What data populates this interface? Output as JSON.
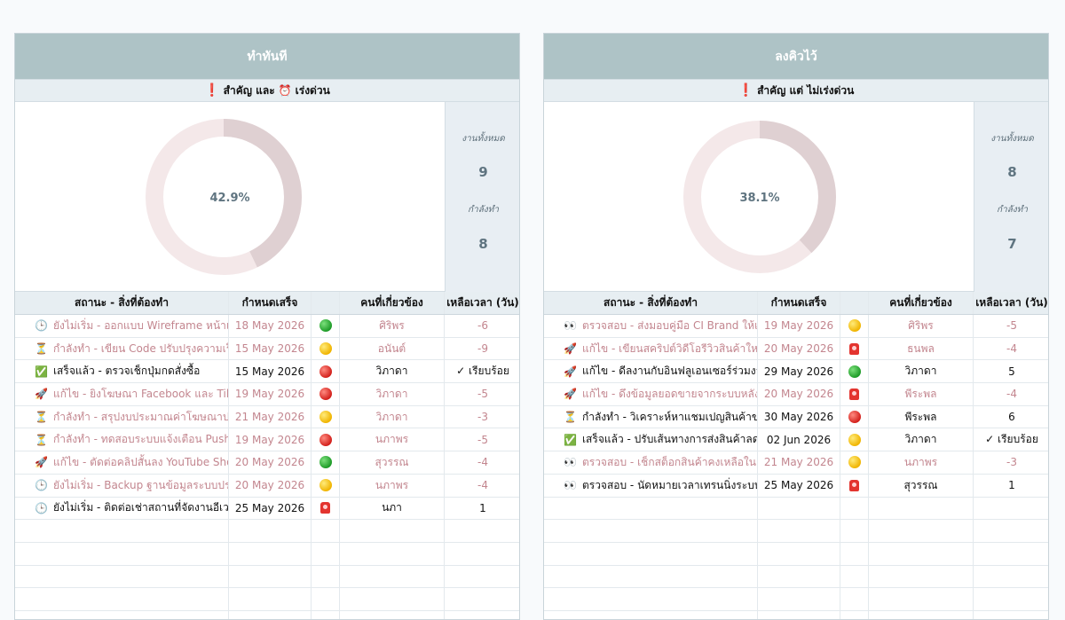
{
  "panels": [
    {
      "title": "ทำทันที",
      "subtitle": {
        "mark": "❗",
        "text_a": "สำคัญ และ",
        "clock": "⏰",
        "text_b": "เร่งด่วน"
      },
      "progress": 0.429,
      "progress_label": "42.9%",
      "stats": {
        "total_label": "งานทั้งหมด",
        "total": "9",
        "doing_label": "กำลังทำ",
        "doing": "8"
      },
      "headers": [
        "สถานะ - สิ่งที่ต้องทำ",
        "กำหนดเสร็จ",
        "",
        "คนที่เกี่ยวข้อง",
        "เหลือเวลา (วัน)"
      ],
      "rows": [
        {
          "icon": "🕒",
          "task": "ยังไม่เริ่ม - ออกแบบ Wireframe หน้าแรก",
          "due": "18 May 2026",
          "flag": "green",
          "person": "ศิริพร",
          "left": "-6",
          "muted": true
        },
        {
          "icon": "⏳",
          "task": "กำลังทำ - เขียน Code ปรับปรุงความเร็วเว็บไซต์",
          "due": "15 May 2026",
          "flag": "yellow",
          "person": "อนันต์",
          "left": "-9",
          "muted": true
        },
        {
          "icon": "✅",
          "task": "เสร็จแล้ว - ตรวจเช็กปุ่มกดสั่งซื้อ",
          "due": "15 May 2026",
          "flag": "red",
          "person": "วิภาดา",
          "left": "✓ เรียบร้อย",
          "muted": false
        },
        {
          "icon": "🚀",
          "task": "แก้ไข - ยิงโฆษณา Facebook และ TikTok",
          "due": "19 May 2026",
          "flag": "red",
          "person": "วิภาดา",
          "left": "-5",
          "muted": true
        },
        {
          "icon": "⏳",
          "task": "กำลังทำ - สรุปงบประมาณค่าโฆษณาประจำเดือน",
          "due": "21 May 2026",
          "flag": "yellow",
          "person": "วิภาดา",
          "left": "-3",
          "muted": true
        },
        {
          "icon": "⏳",
          "task": "กำลังทำ - ทดสอบระบบแจ้งเตือน Push Notification",
          "due": "19 May 2026",
          "flag": "red",
          "person": "นภาพร",
          "left": "-5",
          "muted": true
        },
        {
          "icon": "🚀",
          "task": "แก้ไข - ตัดต่อคลิปสั้นลง YouTube Shorts",
          "due": "20 May 2026",
          "flag": "green",
          "person": "สุวรรณ",
          "left": "-4",
          "muted": true
        },
        {
          "icon": "🕒",
          "task": "ยังไม่เริ่ม - Backup ฐานข้อมูลระบบประจำสัปดาห์",
          "due": "20 May 2026",
          "flag": "yellow",
          "person": "นภาพร",
          "left": "-4",
          "muted": true
        },
        {
          "icon": "🕒",
          "task": "ยังไม่เริ่ม - ติดต่อเช่าสถานที่จัดงานอีเวนต์",
          "due": "25 May 2026",
          "flag": "siren",
          "person": "นภา",
          "left": "1",
          "muted": false
        }
      ]
    },
    {
      "title": "ลงคิวไว้",
      "subtitle": {
        "mark": "❗",
        "text_a": "สำคัญ แต่ ไม่เร่งด่วน",
        "clock": "",
        "text_b": ""
      },
      "progress": 0.381,
      "progress_label": "38.1%",
      "stats": {
        "total_label": "งานทั้งหมด",
        "total": "8",
        "doing_label": "กำลังทำ",
        "doing": "7"
      },
      "headers": [
        "สถานะ - สิ่งที่ต้องทำ",
        "กำหนดเสร็จ",
        "",
        "คนที่เกี่ยวข้อง",
        "เหลือเวลา (วัน)"
      ],
      "rows": [
        {
          "icon": "👀",
          "task": "ตรวจสอบ - ส่งมอบคู่มือ CI Brand ให้แผนก",
          "due": "19 May 2026",
          "flag": "yellow",
          "person": "ศิริพร",
          "left": "-5",
          "muted": true
        },
        {
          "icon": "🚀",
          "task": "แก้ไข - เขียนสคริปต์วิดีโอรีวิวสินค้าใหม่",
          "due": "20 May 2026",
          "flag": "siren",
          "person": "ธนพล",
          "left": "-4",
          "muted": true
        },
        {
          "icon": "🚀",
          "task": "แก้ไข - ดีลงานกับอินฟลูเอนเซอร์ร่วมงาน",
          "due": "29 May 2026",
          "flag": "green",
          "person": "วิภาดา",
          "left": "5",
          "muted": false
        },
        {
          "icon": "🚀",
          "task": "แก้ไข - ดึงข้อมูลยอดขายจากระบบหลังบ้าน",
          "due": "20 May 2026",
          "flag": "siren",
          "person": "พีระพล",
          "left": "-4",
          "muted": true
        },
        {
          "icon": "⏳",
          "task": "กำลังทำ - วิเคราะห์หาแชมเปญสินค้าขายดี",
          "due": "30 May 2026",
          "flag": "red",
          "person": "พีระพล",
          "left": "6",
          "muted": false
        },
        {
          "icon": "✅",
          "task": "เสร็จแล้ว - ปรับเส้นทางการส่งสินค้าลดต้นทุน",
          "due": "02 Jun 2026",
          "flag": "yellow",
          "person": "วิภาดา",
          "left": "✓ เรียบร้อย",
          "muted": false
        },
        {
          "icon": "👀",
          "task": "ตรวจสอบ - เช็กสต็อกสินค้าคงเหลือในคลัง",
          "due": "21 May 2026",
          "flag": "yellow",
          "person": "นภาพร",
          "left": "-3",
          "muted": true
        },
        {
          "icon": "👀",
          "task": "ตรวจสอบ - นัดหมายเวลาเทรนนิ่งระบบภายใน",
          "due": "25 May 2026",
          "flag": "siren",
          "person": "สุวรรณ",
          "left": "1",
          "muted": false
        }
      ]
    }
  ],
  "colors": {
    "header_bg": "#aec3c6",
    "donut_done": "#dfd0d2",
    "donut_rest": "#f4e8e9",
    "muted_text": "#c3868f"
  }
}
